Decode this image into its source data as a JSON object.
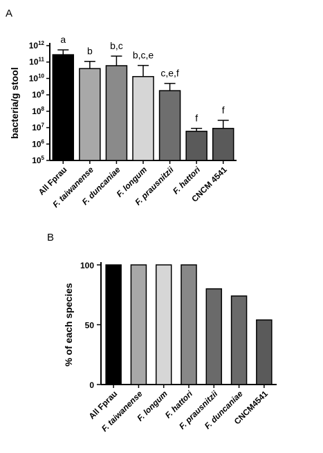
{
  "chart_data": [
    {
      "panel": "A",
      "type": "bar",
      "ylabel": "bacteria/g stool",
      "yscale": "log",
      "ylim": [
        100000,
        1000000000000
      ],
      "yticks": [
        {
          "base": "10",
          "exp": "5",
          "value": 100000
        },
        {
          "base": "10",
          "exp": "6",
          "value": 1000000
        },
        {
          "base": "10",
          "exp": "7",
          "value": 10000000
        },
        {
          "base": "10",
          "exp": "8",
          "value": 100000000
        },
        {
          "base": "10",
          "exp": "9",
          "value": 1000000000
        },
        {
          "base": "10",
          "exp": "10",
          "value": 10000000000
        },
        {
          "base": "10",
          "exp": "11",
          "value": 100000000000
        },
        {
          "base": "10",
          "exp": "12",
          "value": 1000000000000
        }
      ],
      "categories": [
        {
          "label": "All Fprau",
          "italic": false
        },
        {
          "label": "F. taiwanense",
          "italic": true
        },
        {
          "label": "F. duncaniae",
          "italic": true
        },
        {
          "label": "F. longum",
          "italic": true
        },
        {
          "label": "F. prausnitzii",
          "italic": true
        },
        {
          "label": "F. hattori",
          "italic": true
        },
        {
          "label": "CNCM 4541",
          "italic": false
        }
      ],
      "values": [
        280000000000,
        40000000000,
        60000000000,
        13000000000,
        1800000000,
        6000000,
        9000000
      ],
      "error_upper": [
        550000000000,
        110000000000,
        230000000000,
        62000000000,
        5000000000,
        9000000,
        28000000
      ],
      "significance": [
        "a",
        "b",
        "b,c",
        "b,c,e",
        "c,e,f",
        "f",
        "f"
      ],
      "colors": [
        "#000000",
        "#a8a8a8",
        "#8a8a8a",
        "#d6d6d6",
        "#6e6e6e",
        "#5a5a5a",
        "#5a5a5a"
      ],
      "grid": false
    },
    {
      "panel": "B",
      "type": "bar",
      "ylabel": "% of each species",
      "ylim": [
        0,
        100
      ],
      "yticks": [
        "0",
        "50",
        "100"
      ],
      "categories": [
        {
          "label": "All Fprau",
          "italic": false
        },
        {
          "label": "F. taiwanense",
          "italic": true
        },
        {
          "label": "F. longum",
          "italic": true
        },
        {
          "label": "F. hattori",
          "italic": true
        },
        {
          "label": "F. prausnitzii",
          "italic": true
        },
        {
          "label": "F. duncaniae",
          "italic": true
        },
        {
          "label": "CNCM4541",
          "italic": false
        }
      ],
      "values": [
        100,
        100,
        100,
        100,
        80,
        74,
        54
      ],
      "colors": [
        "#000000",
        "#a8a8a8",
        "#d6d6d6",
        "#888888",
        "#6a6a6a",
        "#6a6a6a",
        "#5a5a5a"
      ],
      "grid": false
    }
  ]
}
